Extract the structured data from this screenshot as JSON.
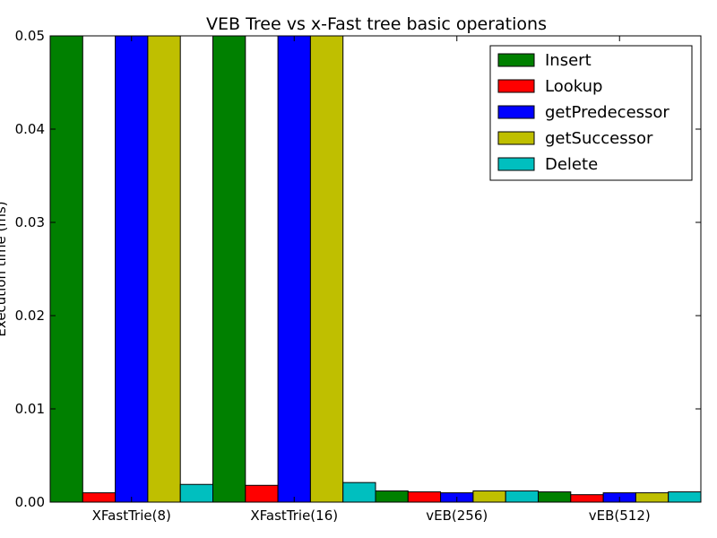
{
  "chart_data": {
    "type": "bar",
    "title": "VEB Tree vs x-Fast tree basic operations",
    "xlabel": "",
    "ylabel": "Execution time (ms)",
    "categories": [
      "XFastTrie(8)",
      "XFastTrie(16)",
      "vEB(256)",
      "vEB(512)"
    ],
    "ylim": [
      0,
      0.05
    ],
    "yticks": [
      "0.00",
      "0.01",
      "0.02",
      "0.03",
      "0.04",
      "0.05"
    ],
    "legend_position": "top-right",
    "grid": false,
    "series": [
      {
        "name": "Insert",
        "color": "#008000",
        "values": [
          0.05,
          0.05,
          0.0012,
          0.0011
        ]
      },
      {
        "name": "Lookup",
        "color": "#ff0000",
        "values": [
          0.001,
          0.0018,
          0.0011,
          0.0008
        ]
      },
      {
        "name": "getPredecessor",
        "color": "#0000ff",
        "values": [
          0.05,
          0.05,
          0.001,
          0.001
        ]
      },
      {
        "name": "getSuccessor",
        "color": "#bfbf00",
        "values": [
          0.05,
          0.05,
          0.0012,
          0.001
        ]
      },
      {
        "name": "Delete",
        "color": "#00bfbf",
        "values": [
          0.0019,
          0.0021,
          0.0012,
          0.0011
        ]
      }
    ]
  }
}
